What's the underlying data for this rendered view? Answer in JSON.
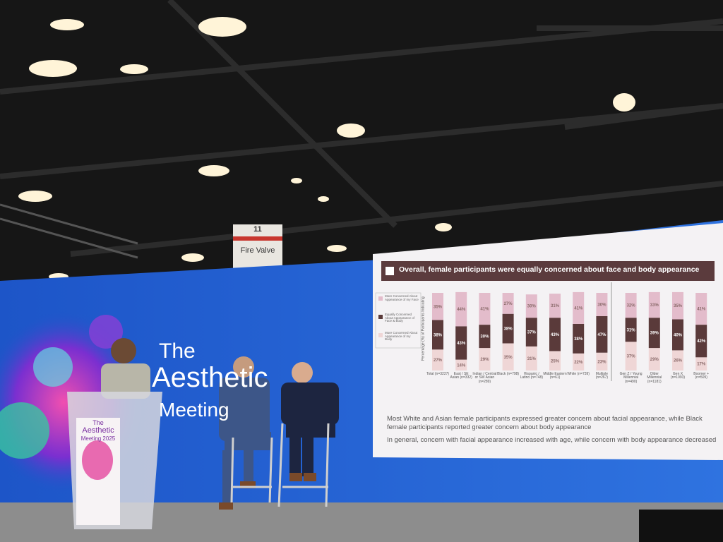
{
  "venue_sign": {
    "number": "11",
    "text": "Fire Valve"
  },
  "backdrop": {
    "lines": [
      "The",
      "Aesthetic",
      "Meeting"
    ]
  },
  "podium": {
    "lines": [
      "The",
      "Aesthetic",
      "Meeting 2025"
    ]
  },
  "slide": {
    "title": "Overall, female participants were equally concerned about face and body appearance",
    "bullets": [
      "Most White and Asian female participants expressed greater concern about facial appearance, while Black female participants reported greater concern about body appearance",
      "In general, concern with facial appearance increased with age, while concern with body appearance decreased"
    ]
  },
  "chart_data": {
    "type": "stacked-bar",
    "y_label": "Percentage (%) of Participants Indicating",
    "categories": [
      "Total (n=3227)",
      "East / SE Asian (n=332)",
      "Indian / Central or SW Asian (n=289)",
      "Black (n=798)",
      "Hispanic / Latino (n=748)",
      "Middle Eastern (n=61)",
      "White (n=739)",
      "Multiple (n=267)",
      "Gen Z / Young Millennial (n=490)",
      "Older Millennial (n=1181)",
      "Gen X (n=1093)",
      "Boomer + (n=509)"
    ],
    "series": [
      {
        "name": "More Concerned About Appearance of my Body",
        "color": "#efd6d6",
        "values": [
          27,
          14,
          29,
          35,
          31,
          25,
          22,
          23,
          37,
          29,
          26,
          17
        ],
        "value_labels": [
          "27%",
          "14%",
          "29%",
          "35%",
          "31%",
          "25%",
          "22%",
          "23%",
          "37%",
          "29%",
          "26%",
          "17%"
        ]
      },
      {
        "name": "Equally Concerned About Appearance of Face & Body",
        "color": "#5a3a3a",
        "values": [
          38,
          43,
          30,
          38,
          37,
          43,
          38,
          47,
          31,
          39,
          40,
          42
        ],
        "value_labels": [
          "38%",
          "43%",
          "30%",
          "38%",
          "37%",
          "43%",
          "38%",
          "47%",
          "31%",
          "39%",
          "40%",
          "42%"
        ]
      },
      {
        "name": "More Concerned About Appearance of my Face",
        "color": "#e3bccb",
        "values": [
          35,
          44,
          41,
          27,
          30,
          31,
          41,
          30,
          32,
          33,
          35,
          41
        ],
        "value_labels": [
          "35%",
          "44%",
          "41%",
          "27%",
          "30%",
          "31%",
          "41%",
          "30%",
          "32%",
          "33%",
          "35%",
          "41%"
        ]
      }
    ]
  }
}
